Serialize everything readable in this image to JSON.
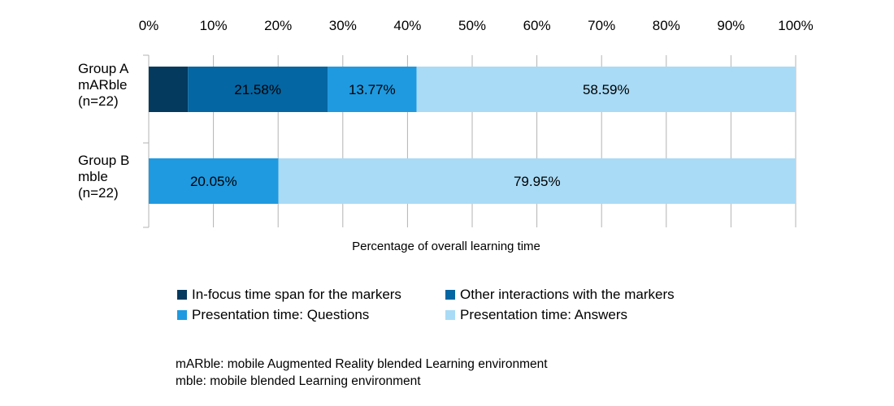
{
  "chart_data": {
    "type": "bar",
    "orientation": "horizontal",
    "stacked": true,
    "xlabel": "Percentage of overall learning time",
    "xlim": [
      0,
      100
    ],
    "x_ticks": [
      "0%",
      "10%",
      "20%",
      "30%",
      "40%",
      "50%",
      "60%",
      "70%",
      "80%",
      "90%",
      "100%"
    ],
    "x_tick_position": "top",
    "grid": true,
    "legend_position": "bottom",
    "categories": [
      [
        "Group A",
        "mARble",
        "(n=22)"
      ],
      [
        "Group B",
        "mble",
        "(n=22)"
      ]
    ],
    "series": [
      {
        "name": "In-focus time span for the markers",
        "color": "#043a5e",
        "values": [
          6.06,
          0
        ],
        "labels": [
          "",
          ""
        ]
      },
      {
        "name": "Other interactions with the markers",
        "color": "#0466a2",
        "values": [
          21.58,
          0
        ],
        "labels": [
          "21.58%",
          ""
        ]
      },
      {
        "name": "Presentation time: Questions",
        "color": "#1f9ae0",
        "values": [
          13.77,
          20.05
        ],
        "labels": [
          "13.77%",
          "20.05%"
        ]
      },
      {
        "name": "Presentation time: Answers",
        "color": "#a9dbf6",
        "values": [
          58.59,
          79.95
        ],
        "labels": [
          "58.59%",
          "79.95%"
        ]
      }
    ]
  },
  "notes": [
    "mARble: mobile Augmented Reality blended Learning environment",
    "mble: mobile blended Learning environment"
  ]
}
